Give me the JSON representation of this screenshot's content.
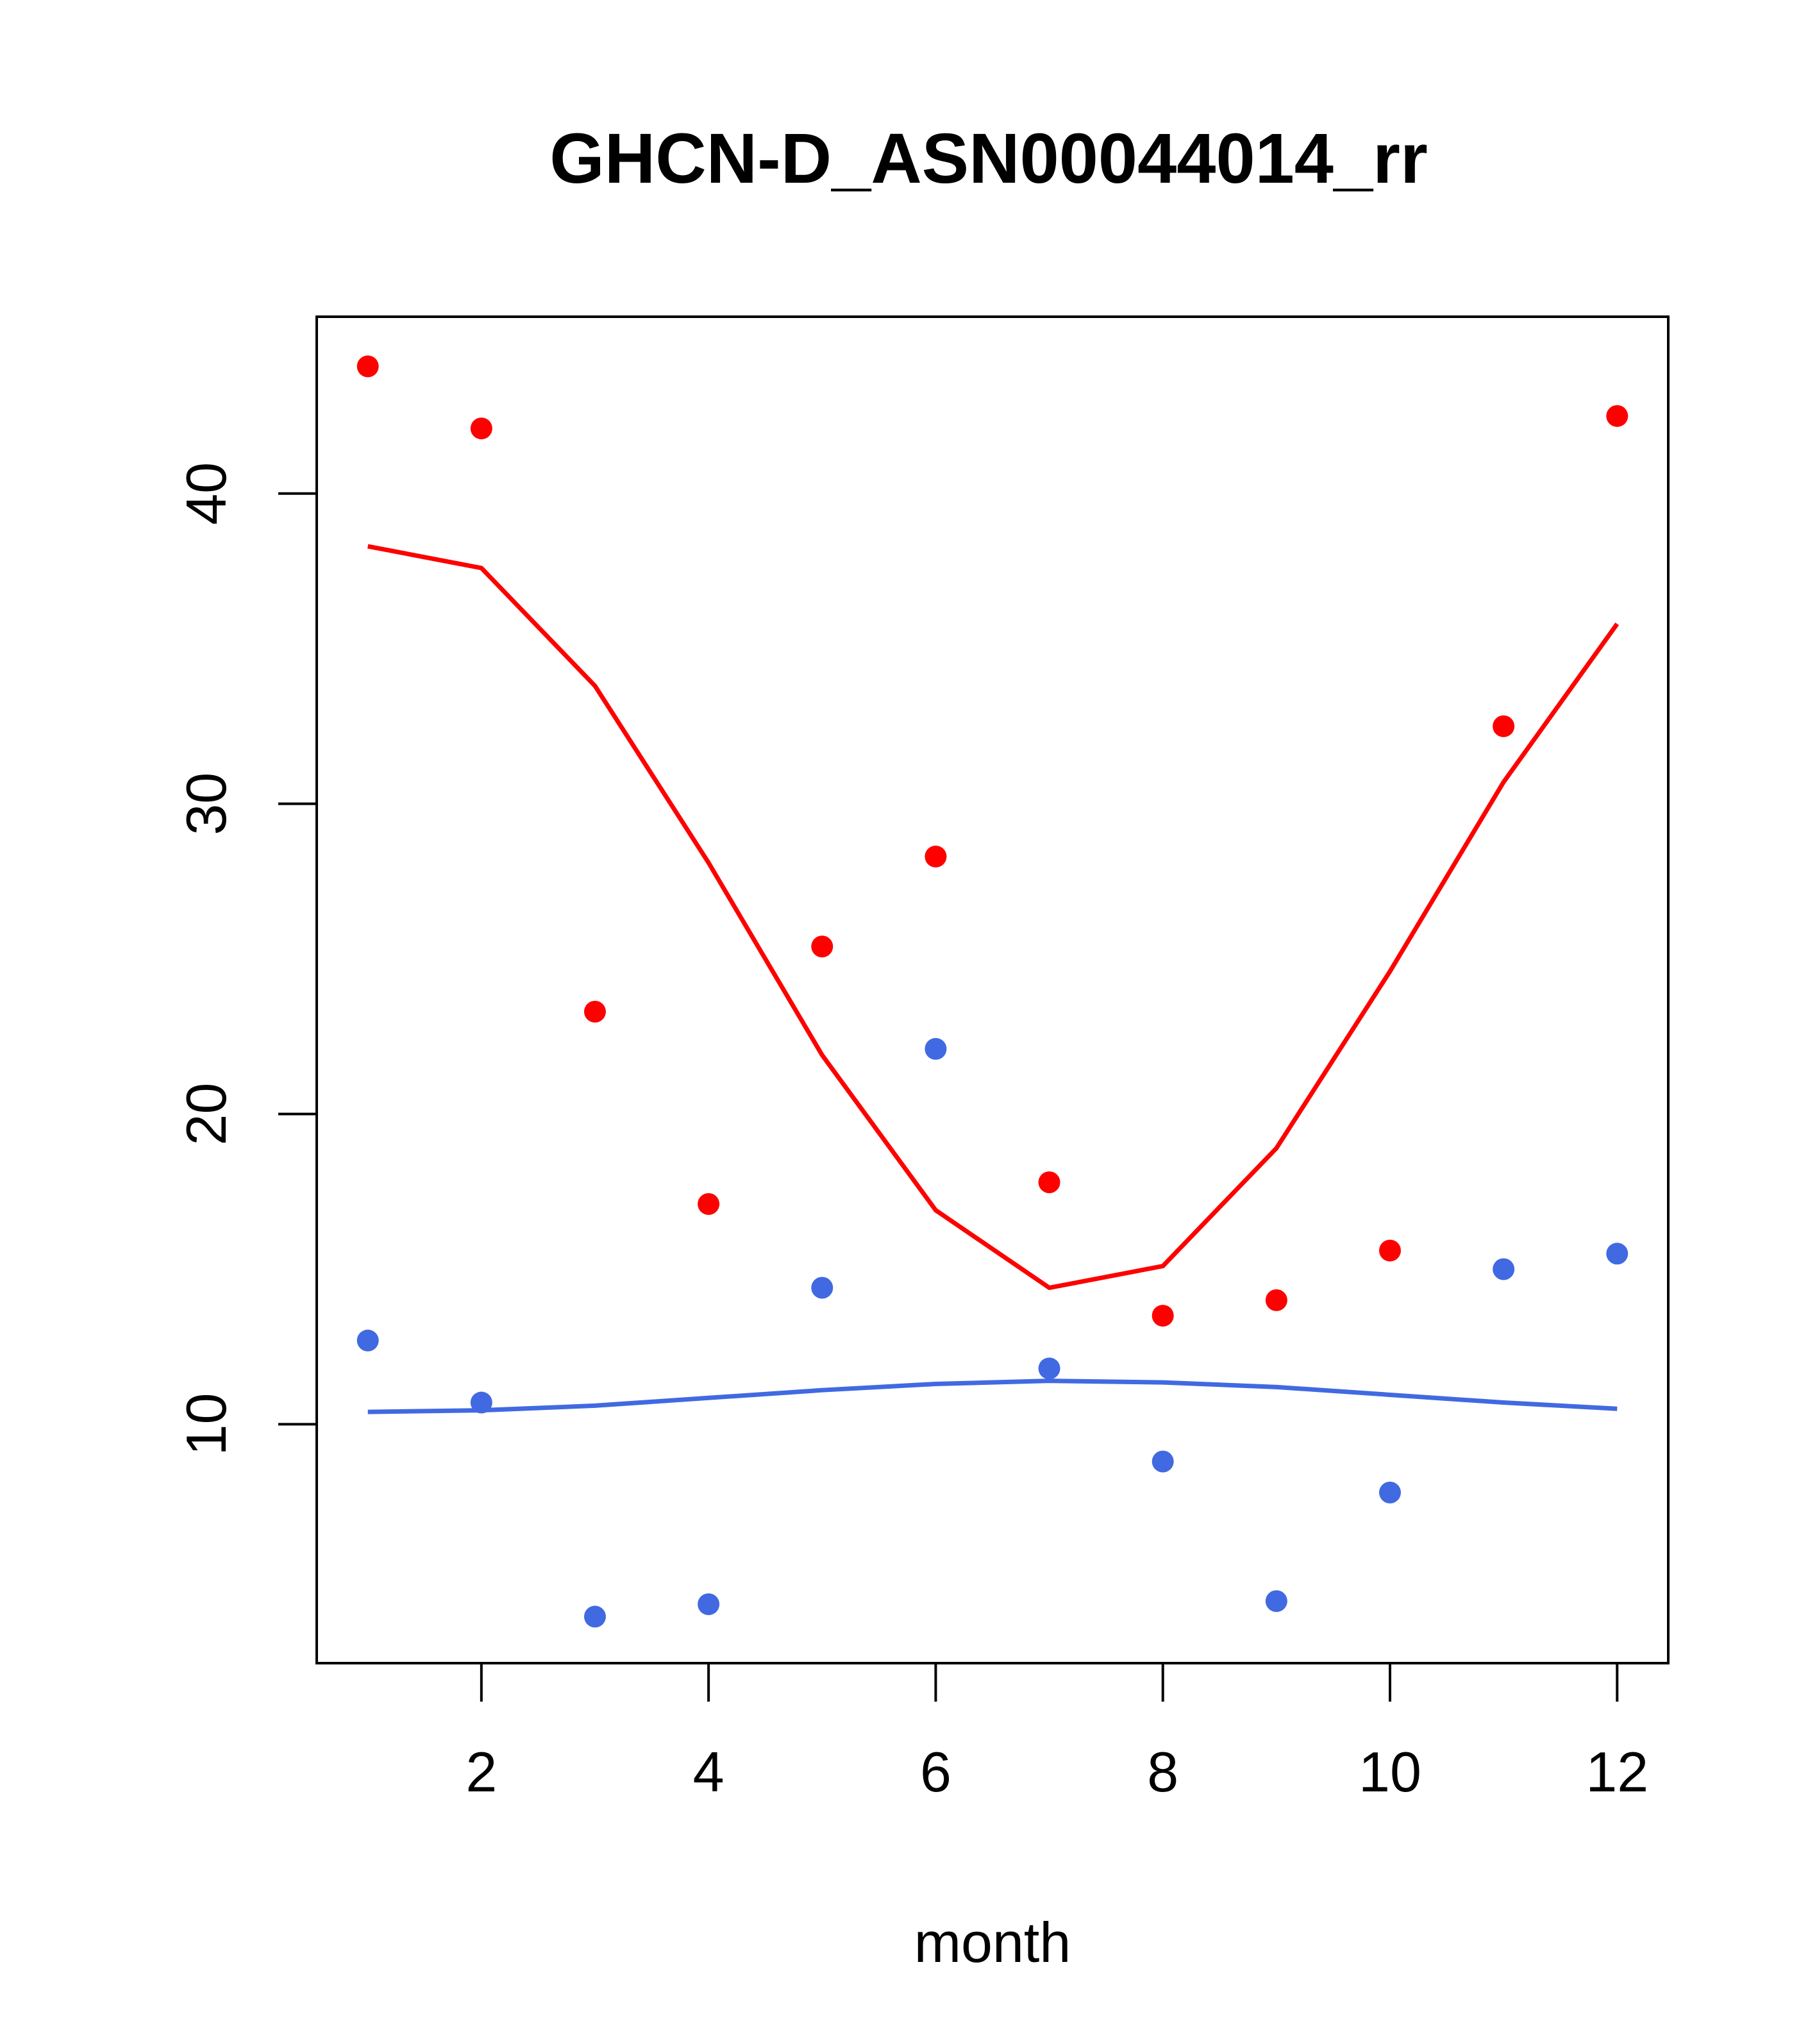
{
  "chart_data": {
    "type": "scatter",
    "title": "GHCN-D_ASN00044014_rr",
    "xlabel": "month",
    "ylabel": "",
    "xlim": [
      0.55,
      12.45
    ],
    "ylim": [
      2.3,
      45.7
    ],
    "x_ticks": [
      2,
      4,
      6,
      8,
      10,
      12
    ],
    "y_ticks": [
      10,
      20,
      30,
      40
    ],
    "grid": false,
    "series": [
      {
        "kind": "points",
        "color": "#ff0000",
        "x": [
          1,
          2,
          3,
          4,
          5,
          6,
          7,
          8,
          9,
          10,
          11,
          12
        ],
        "y": [
          44.1,
          42.1,
          23.3,
          17.1,
          25.4,
          28.3,
          17.8,
          13.5,
          14.0,
          15.6,
          32.5,
          42.5
        ]
      },
      {
        "kind": "line",
        "color": "#ff0000",
        "x": [
          1,
          2,
          3,
          4,
          5,
          6,
          7,
          8,
          9,
          10,
          11,
          12
        ],
        "y": [
          38.3,
          37.6,
          33.8,
          28.1,
          21.9,
          16.9,
          14.4,
          15.1,
          18.9,
          24.6,
          30.7,
          35.8
        ]
      },
      {
        "kind": "points",
        "color": "#4169e1",
        "x": [
          1,
          2,
          3,
          4,
          5,
          6,
          7,
          8,
          9,
          10,
          11,
          12
        ],
        "y": [
          12.7,
          10.7,
          3.8,
          4.2,
          14.4,
          22.1,
          11.8,
          8.8,
          4.3,
          7.8,
          15.0,
          15.5
        ]
      },
      {
        "kind": "line",
        "color": "#4169e1",
        "x": [
          1,
          2,
          3,
          4,
          5,
          6,
          7,
          8,
          9,
          10,
          11,
          12
        ],
        "y": [
          10.4,
          10.45,
          10.6,
          10.85,
          11.1,
          11.3,
          11.4,
          11.35,
          11.2,
          10.95,
          10.7,
          10.5
        ]
      }
    ]
  }
}
